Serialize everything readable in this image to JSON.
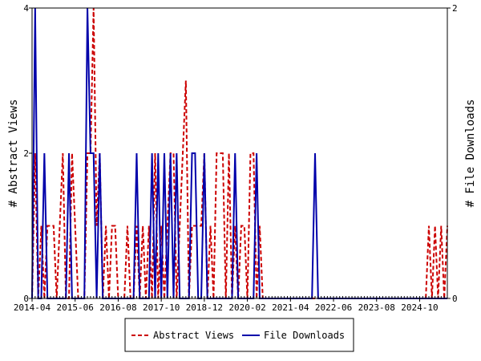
{
  "chart_data": {
    "type": "line",
    "x_ticks": [
      "2014-04",
      "2015-06",
      "2016-08",
      "2017-10",
      "2018-12",
      "2020-02",
      "2021-04",
      "2022-06",
      "2023-08",
      "2024-10"
    ],
    "x_range": [
      "2014-04",
      "2025-07"
    ],
    "y_left": {
      "label": "# Abstract Views",
      "ylim": [
        0,
        4
      ],
      "ticks": [
        0,
        2,
        4
      ]
    },
    "y_right": {
      "label": "# File Downloads",
      "ylim": [
        0,
        2
      ],
      "ticks": [
        0,
        1,
        2
      ]
    },
    "legend_position": "bottom",
    "series": [
      {
        "name": "Abstract Views",
        "axis": "left",
        "color": "#cc0000",
        "dash": "dashed",
        "points": [
          [
            "2014-04",
            0
          ],
          [
            "2014-05",
            2
          ],
          [
            "2014-06",
            0
          ],
          [
            "2014-07",
            1
          ],
          [
            "2014-08",
            0
          ],
          [
            "2014-09",
            1
          ],
          [
            "2014-10",
            1
          ],
          [
            "2014-11",
            1
          ],
          [
            "2014-12",
            0
          ],
          [
            "2015-01",
            1
          ],
          [
            "2015-02",
            2
          ],
          [
            "2015-03",
            0
          ],
          [
            "2015-04",
            0
          ],
          [
            "2015-05",
            2
          ],
          [
            "2015-06",
            1
          ],
          [
            "2015-07",
            0
          ],
          [
            "2015-08",
            0
          ],
          [
            "2015-09",
            0
          ],
          [
            "2015-10",
            2
          ],
          [
            "2015-11",
            2
          ],
          [
            "2015-12",
            4
          ],
          [
            "2016-01",
            1
          ],
          [
            "2016-02",
            2
          ],
          [
            "2016-03",
            0
          ],
          [
            "2016-04",
            1
          ],
          [
            "2016-05",
            0
          ],
          [
            "2016-06",
            1
          ],
          [
            "2016-07",
            1
          ],
          [
            "2016-08",
            0
          ],
          [
            "2016-09",
            0
          ],
          [
            "2016-10",
            0
          ],
          [
            "2016-11",
            1
          ],
          [
            "2016-12",
            0
          ],
          [
            "2017-01",
            0
          ],
          [
            "2017-02",
            1
          ],
          [
            "2017-03",
            0
          ],
          [
            "2017-04",
            1
          ],
          [
            "2017-05",
            0
          ],
          [
            "2017-06",
            1
          ],
          [
            "2017-07",
            0
          ],
          [
            "2017-08",
            2
          ],
          [
            "2017-09",
            0
          ],
          [
            "2017-10",
            1
          ],
          [
            "2017-11",
            0
          ],
          [
            "2017-12",
            1
          ],
          [
            "2018-01",
            2
          ],
          [
            "2018-02",
            2
          ],
          [
            "2018-03",
            0
          ],
          [
            "2018-04",
            1
          ],
          [
            "2018-05",
            2
          ],
          [
            "2018-06",
            3
          ],
          [
            "2018-07",
            0
          ],
          [
            "2018-08",
            1
          ],
          [
            "2018-09",
            1
          ],
          [
            "2018-10",
            1
          ],
          [
            "2018-11",
            1
          ],
          [
            "2018-12",
            2
          ],
          [
            "2019-01",
            0
          ],
          [
            "2019-02",
            1
          ],
          [
            "2019-03",
            0
          ],
          [
            "2019-04",
            2
          ],
          [
            "2019-05",
            2
          ],
          [
            "2019-06",
            2
          ],
          [
            "2019-07",
            0
          ],
          [
            "2019-08",
            2
          ],
          [
            "2019-09",
            0
          ],
          [
            "2019-10",
            1
          ],
          [
            "2019-11",
            0
          ],
          [
            "2019-12",
            1
          ],
          [
            "2020-01",
            1
          ],
          [
            "2020-02",
            0
          ],
          [
            "2020-03",
            2
          ],
          [
            "2020-04",
            2
          ],
          [
            "2020-05",
            0
          ],
          [
            "2020-06",
            1
          ],
          [
            "2020-07",
            0
          ],
          [
            "2020-08",
            0
          ],
          [
            "2020-09",
            0
          ],
          [
            "2020-10",
            0
          ],
          [
            "2020-11",
            0
          ],
          [
            "2020-12",
            0
          ],
          [
            "2021-01",
            0
          ],
          [
            "2021-02",
            0
          ],
          [
            "2021-03",
            0
          ],
          [
            "2021-04",
            0
          ],
          [
            "2021-05",
            0
          ],
          [
            "2021-06",
            0
          ],
          [
            "2021-07",
            0
          ],
          [
            "2021-08",
            0
          ],
          [
            "2021-09",
            0
          ],
          [
            "2021-10",
            0
          ],
          [
            "2021-11",
            0
          ],
          [
            "2021-12",
            0
          ],
          [
            "2022-01",
            0
          ],
          [
            "2022-02",
            0
          ],
          [
            "2022-03",
            0
          ],
          [
            "2022-04",
            0
          ],
          [
            "2022-05",
            0
          ],
          [
            "2022-06",
            0
          ],
          [
            "2022-07",
            0
          ],
          [
            "2022-08",
            0
          ],
          [
            "2022-09",
            0
          ],
          [
            "2022-10",
            0
          ],
          [
            "2022-11",
            0
          ],
          [
            "2022-12",
            0
          ],
          [
            "2023-01",
            0
          ],
          [
            "2023-02",
            0
          ],
          [
            "2023-03",
            0
          ],
          [
            "2023-04",
            0
          ],
          [
            "2023-05",
            0
          ],
          [
            "2023-06",
            0
          ],
          [
            "2023-07",
            0
          ],
          [
            "2023-08",
            0
          ],
          [
            "2023-09",
            0
          ],
          [
            "2023-10",
            0
          ],
          [
            "2023-11",
            0
          ],
          [
            "2023-12",
            0
          ],
          [
            "2024-01",
            0
          ],
          [
            "2024-02",
            0
          ],
          [
            "2024-03",
            0
          ],
          [
            "2024-04",
            0
          ],
          [
            "2024-05",
            0
          ],
          [
            "2024-06",
            0
          ],
          [
            "2024-07",
            0
          ],
          [
            "2024-08",
            0
          ],
          [
            "2024-09",
            0
          ],
          [
            "2024-10",
            0
          ],
          [
            "2024-11",
            0
          ],
          [
            "2024-12",
            0
          ],
          [
            "2025-01",
            1
          ],
          [
            "2025-02",
            0
          ],
          [
            "2025-03",
            1
          ],
          [
            "2025-04",
            0
          ],
          [
            "2025-05",
            1
          ],
          [
            "2025-06",
            0
          ],
          [
            "2025-07",
            1
          ]
        ]
      },
      {
        "name": "File Downloads",
        "axis": "right",
        "color": "#0000aa",
        "dash": "solid",
        "points": [
          [
            "2014-04",
            0
          ],
          [
            "2014-05",
            2
          ],
          [
            "2014-06",
            0
          ],
          [
            "2014-07",
            0
          ],
          [
            "2014-08",
            1
          ],
          [
            "2014-09",
            0
          ],
          [
            "2014-10",
            0
          ],
          [
            "2014-11",
            0
          ],
          [
            "2014-12",
            0
          ],
          [
            "2015-01",
            0
          ],
          [
            "2015-02",
            0
          ],
          [
            "2015-03",
            0
          ],
          [
            "2015-04",
            1
          ],
          [
            "2015-05",
            0
          ],
          [
            "2015-06",
            0
          ],
          [
            "2015-07",
            0
          ],
          [
            "2015-08",
            0
          ],
          [
            "2015-09",
            0
          ],
          [
            "2015-10",
            2
          ],
          [
            "2015-11",
            1
          ],
          [
            "2015-12",
            1
          ],
          [
            "2016-01",
            0
          ],
          [
            "2016-02",
            1
          ],
          [
            "2016-03",
            0
          ],
          [
            "2016-04",
            0
          ],
          [
            "2016-05",
            0
          ],
          [
            "2016-06",
            0
          ],
          [
            "2016-07",
            0
          ],
          [
            "2016-08",
            0
          ],
          [
            "2016-09",
            0
          ],
          [
            "2016-10",
            0
          ],
          [
            "2016-11",
            0
          ],
          [
            "2016-12",
            0
          ],
          [
            "2017-01",
            0
          ],
          [
            "2017-02",
            1
          ],
          [
            "2017-03",
            0
          ],
          [
            "2017-04",
            0
          ],
          [
            "2017-05",
            0
          ],
          [
            "2017-06",
            0
          ],
          [
            "2017-07",
            1
          ],
          [
            "2017-08",
            0
          ],
          [
            "2017-09",
            1
          ],
          [
            "2017-10",
            0
          ],
          [
            "2017-11",
            1
          ],
          [
            "2017-12",
            0
          ],
          [
            "2018-01",
            1
          ],
          [
            "2018-02",
            0
          ],
          [
            "2018-03",
            1
          ],
          [
            "2018-04",
            0
          ],
          [
            "2018-05",
            0
          ],
          [
            "2018-06",
            0
          ],
          [
            "2018-07",
            0
          ],
          [
            "2018-08",
            1
          ],
          [
            "2018-09",
            1
          ],
          [
            "2018-10",
            0
          ],
          [
            "2018-11",
            0
          ],
          [
            "2018-12",
            1
          ],
          [
            "2019-01",
            0
          ],
          [
            "2019-02",
            0
          ],
          [
            "2019-03",
            0
          ],
          [
            "2019-04",
            0
          ],
          [
            "2019-05",
            0
          ],
          [
            "2019-06",
            0
          ],
          [
            "2019-07",
            0
          ],
          [
            "2019-08",
            0
          ],
          [
            "2019-09",
            0
          ],
          [
            "2019-10",
            1
          ],
          [
            "2019-11",
            0
          ],
          [
            "2019-12",
            0
          ],
          [
            "2020-01",
            0
          ],
          [
            "2020-02",
            0
          ],
          [
            "2020-03",
            0
          ],
          [
            "2020-04",
            0
          ],
          [
            "2020-05",
            1
          ],
          [
            "2020-06",
            0
          ],
          [
            "2020-07",
            0
          ],
          [
            "2020-08",
            0
          ],
          [
            "2020-09",
            0
          ],
          [
            "2020-10",
            0
          ],
          [
            "2020-11",
            0
          ],
          [
            "2020-12",
            0
          ],
          [
            "2021-01",
            0
          ],
          [
            "2021-02",
            0
          ],
          [
            "2021-03",
            0
          ],
          [
            "2021-04",
            0
          ],
          [
            "2021-05",
            0
          ],
          [
            "2021-06",
            0
          ],
          [
            "2021-07",
            0
          ],
          [
            "2021-08",
            0
          ],
          [
            "2021-09",
            0
          ],
          [
            "2021-10",
            0
          ],
          [
            "2021-11",
            0
          ],
          [
            "2021-12",
            1
          ],
          [
            "2022-01",
            0
          ],
          [
            "2022-02",
            0
          ],
          [
            "2022-03",
            0
          ],
          [
            "2022-04",
            0
          ],
          [
            "2022-05",
            0
          ],
          [
            "2022-06",
            0
          ],
          [
            "2022-07",
            0
          ],
          [
            "2022-08",
            0
          ],
          [
            "2022-09",
            0
          ],
          [
            "2022-10",
            0
          ],
          [
            "2022-11",
            0
          ],
          [
            "2022-12",
            0
          ],
          [
            "2023-01",
            0
          ],
          [
            "2023-02",
            0
          ],
          [
            "2023-03",
            0
          ],
          [
            "2023-04",
            0
          ],
          [
            "2023-05",
            0
          ],
          [
            "2023-06",
            0
          ],
          [
            "2023-07",
            0
          ],
          [
            "2023-08",
            0
          ],
          [
            "2023-09",
            0
          ],
          [
            "2023-10",
            0
          ],
          [
            "2023-11",
            0
          ],
          [
            "2023-12",
            0
          ],
          [
            "2024-01",
            0
          ],
          [
            "2024-02",
            0
          ],
          [
            "2024-03",
            0
          ],
          [
            "2024-04",
            0
          ],
          [
            "2024-05",
            0
          ],
          [
            "2024-06",
            0
          ],
          [
            "2024-07",
            0
          ],
          [
            "2024-08",
            0
          ],
          [
            "2024-09",
            0
          ],
          [
            "2024-10",
            0
          ],
          [
            "2024-11",
            0
          ],
          [
            "2024-12",
            0
          ],
          [
            "2025-01",
            0
          ],
          [
            "2025-02",
            0
          ],
          [
            "2025-03",
            0
          ],
          [
            "2025-04",
            0
          ],
          [
            "2025-05",
            0
          ],
          [
            "2025-06",
            0
          ],
          [
            "2025-07",
            0
          ]
        ]
      }
    ]
  }
}
